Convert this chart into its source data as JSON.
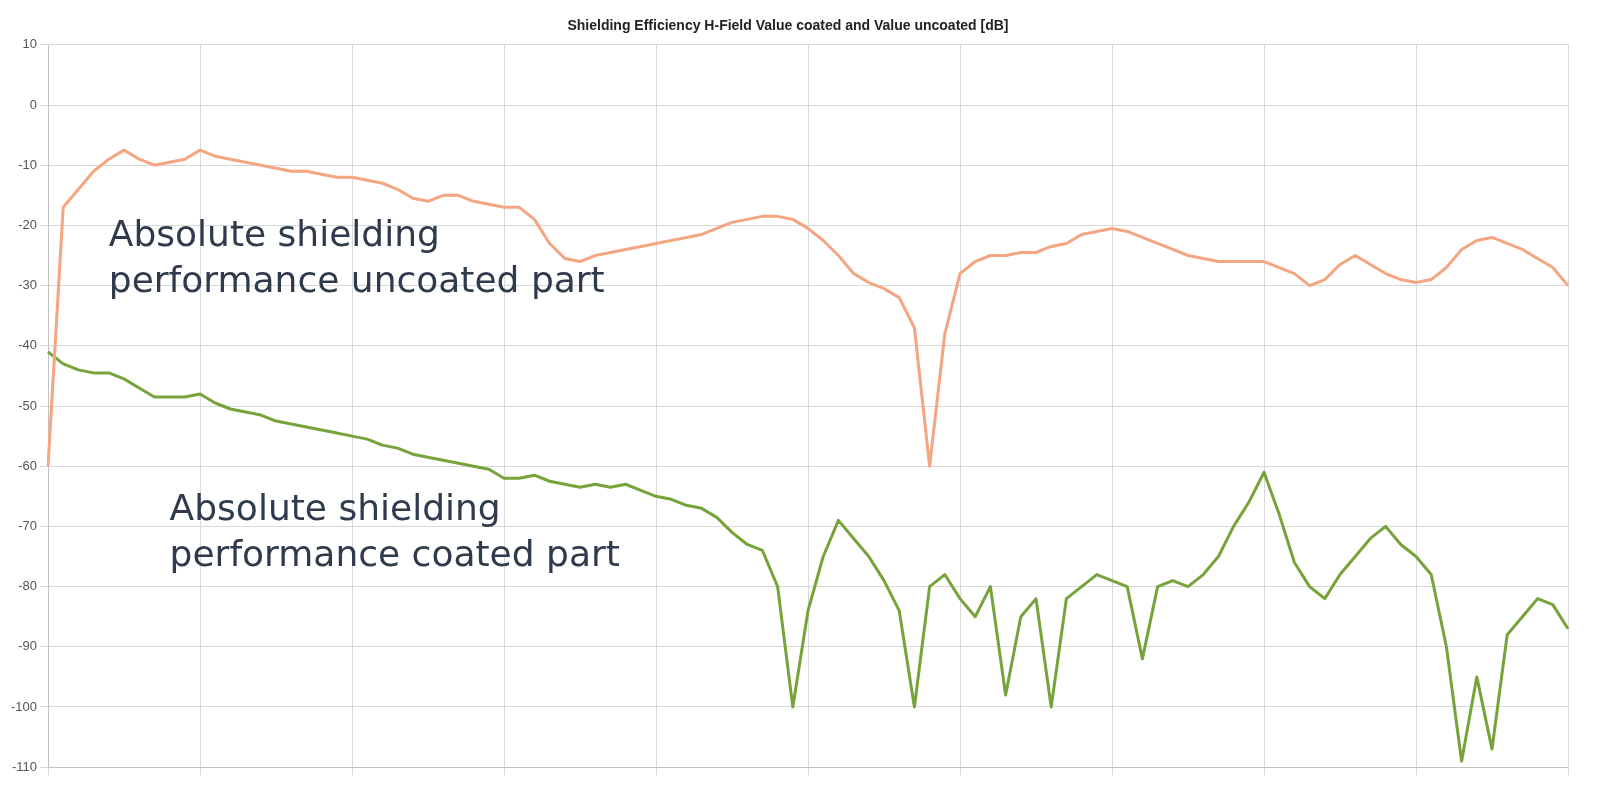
{
  "chart_data": {
    "type": "line",
    "title": "Shielding Efficiency H-Field Value coated and Value uncoated [dB]",
    "categories": [
      null,
      null,
      null,
      null,
      null,
      null,
      null,
      null,
      null,
      null,
      null,
      null,
      null,
      null,
      null,
      null,
      null,
      null,
      null,
      null,
      null,
      null,
      null,
      null,
      null,
      null,
      null,
      null,
      null,
      null,
      null,
      null,
      null,
      null,
      null,
      null,
      null,
      null,
      null,
      null,
      null,
      null,
      null,
      null,
      null,
      null,
      null,
      null,
      null,
      null,
      null,
      null,
      null,
      null,
      null,
      null,
      null,
      null,
      null,
      null,
      null,
      null,
      null,
      null,
      null,
      null,
      null,
      null,
      null,
      null,
      null,
      null,
      null,
      null,
      null,
      null,
      null,
      null,
      null,
      null,
      null,
      null,
      null,
      null,
      null,
      null,
      null,
      null,
      null,
      null,
      null,
      null,
      null,
      null,
      null,
      null,
      null,
      null,
      null,
      null,
      null
    ],
    "series": [
      {
        "color": "#f4a582",
        "values": [
          -60,
          -17,
          -14,
          -11,
          -9,
          -7.5,
          -9,
          -10,
          -9.5,
          -9,
          -7.5,
          -8.5,
          -9,
          -9.5,
          -10,
          -10.5,
          -11,
          -11,
          -11.5,
          -12,
          -12,
          -12.5,
          -13,
          -14,
          -15.5,
          -16,
          -15,
          -15,
          -16,
          -16.5,
          -17,
          -17,
          -19,
          -23,
          -25.5,
          -26,
          -25,
          -24.5,
          -24,
          -23.5,
          -23,
          -22.5,
          -22,
          -21.5,
          -20.5,
          -19.5,
          -19,
          -18.5,
          -18.5,
          -19,
          -20.5,
          -22.5,
          -25,
          -28,
          -29.5,
          -30.5,
          -32,
          -37,
          -60,
          -38,
          -28,
          -26,
          -25,
          -25,
          -24.5,
          -24.5,
          -23.5,
          -23,
          -21.5,
          -21,
          -20.5,
          -21,
          -22,
          -23,
          -24,
          -25,
          -25.5,
          -26,
          -26,
          -26,
          -26,
          -27,
          -28,
          -30,
          -29,
          -26.5,
          -25,
          -26.5,
          -28,
          -29,
          -29.5,
          -29,
          -27,
          -24,
          -22.5,
          -22,
          -23,
          -24,
          -25.5,
          -27,
          -30
        ]
      },
      {
        "color": "#77a33a",
        "values": [
          -41,
          -43,
          -44,
          -44.5,
          -44.5,
          -45.5,
          -47,
          -48.5,
          -48.5,
          -48.5,
          -48,
          -49.5,
          -50.5,
          -51,
          -51.5,
          -52.5,
          -53,
          -53.5,
          -54,
          -54.5,
          -55,
          -55.5,
          -56.5,
          -57,
          -58,
          -58.5,
          -59,
          -59.5,
          -60,
          -60.5,
          -62,
          -62,
          -61.5,
          -62.5,
          -63,
          -63.5,
          -63,
          -63.5,
          -63,
          -64,
          -65,
          -65.5,
          -66.5,
          -67,
          -68.5,
          -71,
          -73,
          -74,
          -80,
          -100,
          -84,
          -75,
          -69,
          -72,
          -75,
          -79,
          -84,
          -100,
          -80,
          -78,
          -82,
          -85,
          -80,
          -98,
          -85,
          -82,
          -100,
          -82,
          -80,
          -78,
          -79,
          -80,
          -92,
          -80,
          -79,
          -80,
          -78,
          -75,
          -70,
          -66,
          -61,
          -68,
          -76,
          -80,
          -82,
          -78,
          -75,
          -72,
          -70,
          -73,
          -75,
          -78,
          -90,
          -109,
          -95,
          -107,
          -88,
          -85,
          -82,
          -83,
          -87
        ]
      }
    ],
    "ylim": [
      -110,
      10
    ],
    "yticks": [
      10,
      0,
      -10,
      -20,
      -30,
      -40,
      -50,
      -60,
      -70,
      -80,
      -90,
      -100,
      -110
    ],
    "grid": true,
    "legend": false,
    "tick_labels": "y",
    "annotations": [
      "Absolute shielding performance uncoated part",
      "Absolute shielding performance coated part"
    ]
  }
}
